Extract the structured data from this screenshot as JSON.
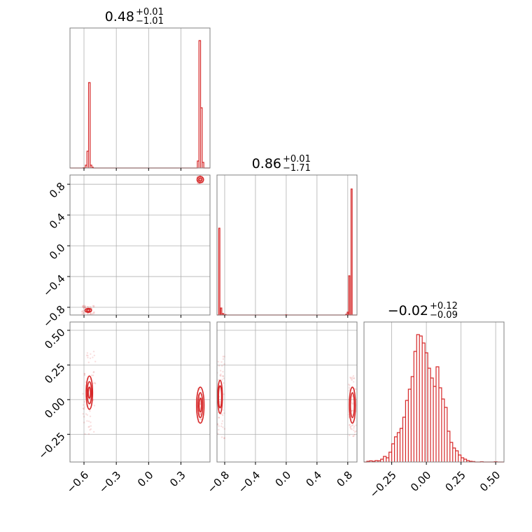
{
  "colors": {
    "accent": "#d62728",
    "grid": "#b0b0b0",
    "frame": "#808080"
  },
  "chart_data": {
    "type": "corner",
    "parameters": [
      {
        "title_value": "0.48",
        "upper": "+0.01",
        "lower": "−1.01"
      },
      {
        "title_value": "0.86",
        "upper": "+0.01",
        "lower": "−1.71"
      },
      {
        "title_value": "−0.02",
        "upper": "+0.12",
        "lower": "−0.09"
      }
    ],
    "axes": [
      {
        "range": [
          -0.73,
          0.57
        ],
        "ticks": [
          -0.6,
          -0.3,
          0.0,
          0.3
        ],
        "tick_labels": [
          "−0.6",
          "−0.3",
          "0.0",
          "0.3"
        ]
      },
      {
        "range": [
          -0.9,
          0.92
        ],
        "ticks": [
          -0.8,
          -0.4,
          0.0,
          0.4,
          0.8
        ],
        "tick_labels": [
          "−0.8",
          "−0.4",
          "0.0",
          "0.4",
          "0.8"
        ]
      },
      {
        "range": [
          -0.45,
          0.56
        ],
        "ticks": [
          -0.25,
          0.0,
          0.25,
          0.5
        ],
        "tick_labels": [
          "−0.25",
          "0.00",
          "0.25",
          "0.50"
        ]
      }
    ],
    "histograms": [
      {
        "param": 0,
        "bins": [
          [
            -0.6,
            0.002
          ],
          [
            -0.58,
            0.02
          ],
          [
            -0.565,
            0.12
          ],
          [
            -0.55,
            0.61
          ],
          [
            -0.535,
            0.02
          ],
          [
            -0.52,
            0.005
          ],
          [
            0.46,
            0.05
          ],
          [
            0.475,
            0.91
          ],
          [
            0.49,
            0.43
          ],
          [
            0.505,
            0.04
          ]
        ]
      },
      {
        "param": 1,
        "bins": [
          [
            -0.87,
            0.62
          ],
          [
            -0.845,
            0.05
          ],
          [
            -0.82,
            0.01
          ],
          [
            -0.79,
            0.003
          ],
          [
            0.0,
            0.002
          ],
          [
            0.78,
            0.005
          ],
          [
            0.8,
            0.02
          ],
          [
            0.82,
            0.28
          ],
          [
            0.85,
            0.9
          ]
        ]
      },
      {
        "param": 2,
        "bins": [
          [
            -0.42,
            0.005
          ],
          [
            -0.4,
            0.008
          ],
          [
            -0.38,
            0.005
          ],
          [
            -0.36,
            0.01
          ],
          [
            -0.34,
            0.008
          ],
          [
            -0.32,
            0.02
          ],
          [
            -0.3,
            0.04
          ],
          [
            -0.28,
            0.03
          ],
          [
            -0.26,
            0.07
          ],
          [
            -0.24,
            0.13
          ],
          [
            -0.22,
            0.18
          ],
          [
            -0.2,
            0.21
          ],
          [
            -0.18,
            0.24
          ],
          [
            -0.16,
            0.32
          ],
          [
            -0.14,
            0.44
          ],
          [
            -0.12,
            0.52
          ],
          [
            -0.1,
            0.61
          ],
          [
            -0.08,
            0.79
          ],
          [
            -0.06,
            0.91
          ],
          [
            -0.04,
            0.9
          ],
          [
            -0.02,
            0.85
          ],
          [
            0.0,
            0.78
          ],
          [
            0.02,
            0.67
          ],
          [
            0.04,
            0.6
          ],
          [
            0.06,
            0.54
          ],
          [
            0.08,
            0.68
          ],
          [
            0.1,
            0.53
          ],
          [
            0.12,
            0.45
          ],
          [
            0.14,
            0.39
          ],
          [
            0.16,
            0.22
          ],
          [
            0.18,
            0.14
          ],
          [
            0.2,
            0.1
          ],
          [
            0.22,
            0.08
          ],
          [
            0.24,
            0.05
          ],
          [
            0.26,
            0.03
          ],
          [
            0.28,
            0.02
          ],
          [
            0.3,
            0.01
          ],
          [
            0.32,
            0.005
          ],
          [
            0.34,
            0.003
          ],
          [
            0.4,
            0.002
          ],
          [
            0.5,
            0.002
          ]
        ]
      }
    ],
    "contours": [
      {
        "x_param": 0,
        "y_param": 1,
        "ellipses": [
          [
            -0.56,
            -0.84,
            0.03,
            0.025
          ],
          [
            -0.56,
            -0.84,
            0.015,
            0.015
          ],
          [
            0.48,
            0.86,
            0.03,
            0.04
          ],
          [
            0.48,
            0.86,
            0.015,
            0.02
          ]
        ]
      },
      {
        "x_param": 0,
        "y_param": 2,
        "ellipses": [
          [
            -0.55,
            0.05,
            0.03,
            0.12
          ],
          [
            -0.55,
            0.05,
            0.02,
            0.08
          ],
          [
            -0.55,
            0.05,
            0.01,
            0.04
          ],
          [
            0.48,
            -0.04,
            0.035,
            0.13
          ],
          [
            0.48,
            -0.04,
            0.022,
            0.09
          ],
          [
            0.48,
            -0.04,
            0.011,
            0.05
          ]
        ]
      },
      {
        "x_param": 1,
        "y_param": 2,
        "ellipses": [
          [
            -0.86,
            0.02,
            0.03,
            0.12
          ],
          [
            -0.86,
            0.02,
            0.02,
            0.08
          ],
          [
            0.86,
            -0.04,
            0.04,
            0.13
          ],
          [
            0.86,
            -0.04,
            0.025,
            0.09
          ]
        ]
      }
    ],
    "grid": true
  }
}
